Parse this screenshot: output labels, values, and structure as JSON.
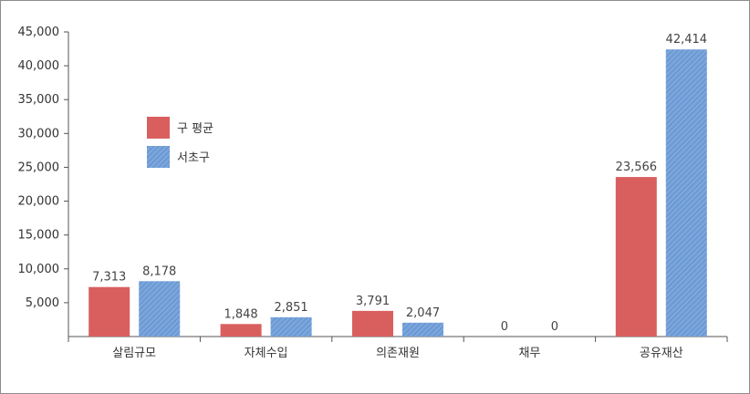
{
  "chart_data": {
    "type": "bar",
    "categories": [
      "살림규모",
      "자체수입",
      "의존재원",
      "채무",
      "공유재산"
    ],
    "series": [
      {
        "name": "구 평균",
        "values": [
          7313,
          1848,
          3791,
          0,
          23566
        ],
        "labels": [
          "7,313",
          "1,848",
          "3,791",
          "0",
          "23,566"
        ],
        "color": "#d95f5f"
      },
      {
        "name": "서초구",
        "values": [
          8178,
          2851,
          2047,
          0,
          42414
        ],
        "labels": [
          "8,178",
          "2,851",
          "2,047",
          "0",
          "42,414"
        ],
        "color": "#6f9fd8"
      }
    ],
    "ylim": [
      0,
      45000
    ],
    "yticks": [
      "5,000",
      "10,000",
      "15,000",
      "20,000",
      "25,000",
      "30,000",
      "35,000",
      "40,000",
      "45,000"
    ],
    "ytick_values": [
      5000,
      10000,
      15000,
      20000,
      25000,
      30000,
      35000,
      40000,
      45000
    ],
    "legend_position": "upper-left",
    "grid": false
  }
}
